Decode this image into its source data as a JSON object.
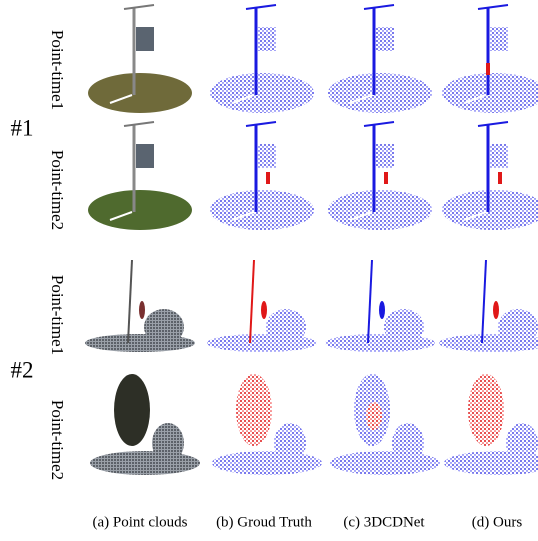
{
  "groups": [
    {
      "label": "#1",
      "rows": [
        "Point-time1",
        "Point-time2"
      ]
    },
    {
      "label": "#2",
      "rows": [
        "Point-time1",
        "Point-time2"
      ]
    }
  ],
  "columns": [
    "(a) Point clouds",
    "(b) Groud Truth",
    "(c) 3DCDNet",
    "(d) Ours"
  ]
}
